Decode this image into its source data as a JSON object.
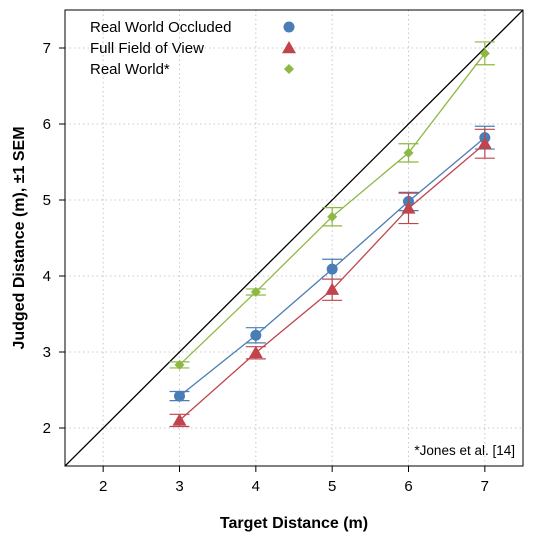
{
  "chart_data": {
    "type": "line",
    "xlabel": "Target Distance (m)",
    "ylabel": "Judged Distance (m), ±1 SEM",
    "xlim": [
      1.5,
      7.5
    ],
    "ylim": [
      1.5,
      7.5
    ],
    "x_ticks": [
      2,
      3,
      4,
      5,
      6,
      7
    ],
    "y_ticks": [
      2,
      3,
      4,
      5,
      6,
      7
    ],
    "grid": true,
    "reference_line": "y = x",
    "legend_position": "top-left",
    "annotation": "*Jones et al. [14]",
    "series": [
      {
        "name": "Real World Occluded",
        "color": "#4a7db5",
        "marker": "circle",
        "x": [
          3,
          4,
          5,
          6,
          7
        ],
        "y": [
          2.42,
          3.22,
          4.09,
          4.98,
          5.82
        ],
        "sem": [
          0.06,
          0.1,
          0.13,
          0.12,
          0.15
        ]
      },
      {
        "name": "Full Field of View",
        "color": "#c0444c",
        "marker": "triangle",
        "x": [
          3,
          4,
          5,
          6,
          7
        ],
        "y": [
          2.1,
          2.99,
          3.82,
          4.89,
          5.74
        ],
        "sem": [
          0.08,
          0.08,
          0.14,
          0.2,
          0.19
        ]
      },
      {
        "name": "Real World*",
        "color": "#8db843",
        "marker": "diamond",
        "x": [
          3,
          4,
          5,
          6,
          7
        ],
        "y": [
          2.83,
          3.79,
          4.78,
          5.62,
          6.93
        ],
        "sem": [
          0.04,
          0.04,
          0.12,
          0.12,
          0.15
        ]
      }
    ]
  }
}
